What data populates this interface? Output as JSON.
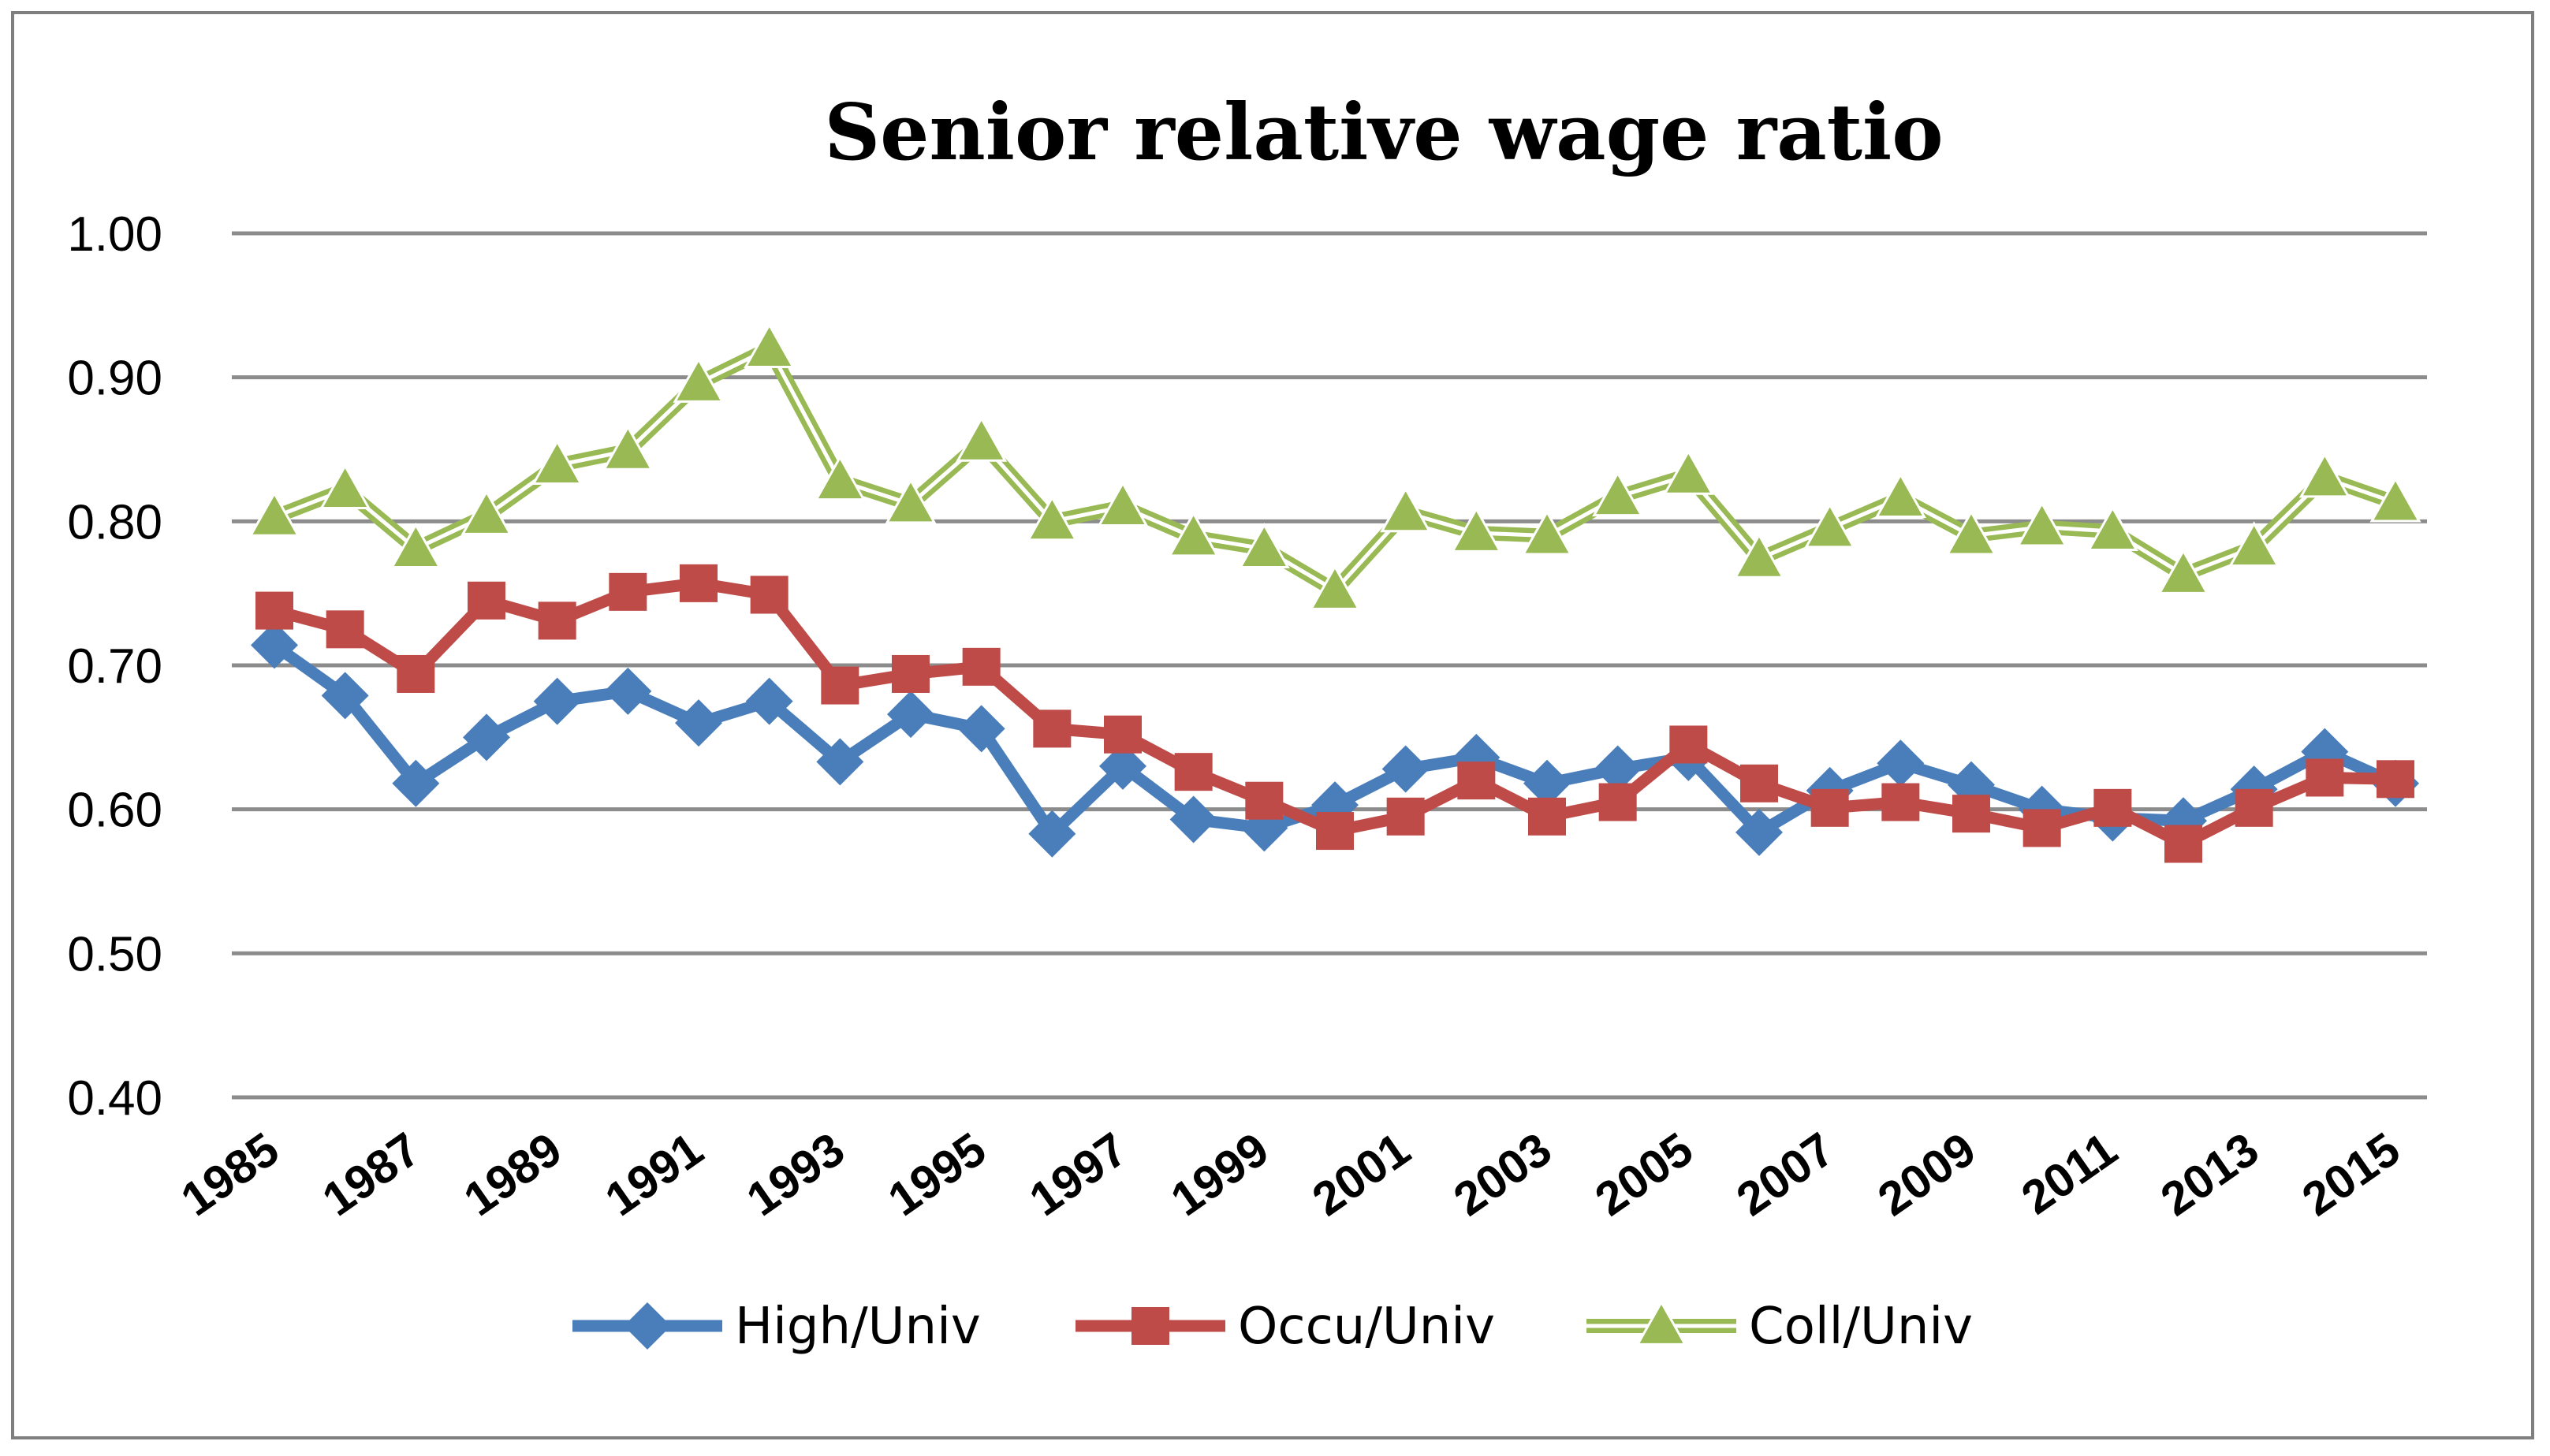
{
  "chart_data": {
    "type": "line",
    "title": "Senior relative wage ratio",
    "xlabel": "",
    "ylabel": "",
    "ylim": [
      0.4,
      1.0
    ],
    "yticks": [
      "1.00",
      "0.90",
      "0.80",
      "0.70",
      "0.60",
      "0.50",
      "0.40"
    ],
    "ytick_values": [
      1.0,
      0.9,
      0.8,
      0.7,
      0.6,
      0.5,
      0.4
    ],
    "x": [
      1985,
      1986,
      1987,
      1988,
      1989,
      1990,
      1991,
      1992,
      1993,
      1994,
      1995,
      1996,
      1997,
      1998,
      1999,
      2000,
      2001,
      2002,
      2003,
      2004,
      2005,
      2006,
      2007,
      2008,
      2009,
      2010,
      2011,
      2012,
      2013,
      2014,
      2015
    ],
    "xtick_labels": [
      "1985",
      "1987",
      "1989",
      "1991",
      "1993",
      "1995",
      "1997",
      "1999",
      "2001",
      "2003",
      "2005",
      "2007",
      "2009",
      "2011",
      "2013",
      "2015"
    ],
    "grid": true,
    "legend_position": "bottom",
    "series": [
      {
        "name": "High/Univ",
        "color": "#4a7ebb",
        "marker": "diamond",
        "values": [
          0.714,
          0.679,
          0.618,
          0.65,
          0.675,
          0.682,
          0.66,
          0.675,
          0.633,
          0.666,
          0.656,
          0.583,
          0.63,
          0.593,
          0.587,
          0.603,
          0.628,
          0.636,
          0.618,
          0.628,
          0.636,
          0.584,
          0.613,
          0.632,
          0.617,
          0.6,
          0.594,
          0.592,
          0.614,
          0.64,
          0.618
        ]
      },
      {
        "name": "Occu/Univ",
        "color": "#be4b48",
        "marker": "square",
        "values": [
          0.738,
          0.725,
          0.694,
          0.745,
          0.731,
          0.751,
          0.757,
          0.749,
          0.686,
          0.694,
          0.699,
          0.656,
          0.652,
          0.626,
          0.606,
          0.585,
          0.595,
          0.62,
          0.595,
          0.605,
          0.645,
          0.618,
          0.601,
          0.605,
          0.597,
          0.587,
          0.601,
          0.576,
          0.601,
          0.622,
          0.621
        ]
      },
      {
        "name": "Coll/Univ",
        "color": "#98b954",
        "marker": "triangle",
        "values": [
          0.803,
          0.822,
          0.781,
          0.804,
          0.839,
          0.849,
          0.896,
          0.92,
          0.828,
          0.812,
          0.855,
          0.8,
          0.81,
          0.789,
          0.781,
          0.752,
          0.806,
          0.792,
          0.79,
          0.817,
          0.832,
          0.774,
          0.795,
          0.816,
          0.79,
          0.796,
          0.793,
          0.763,
          0.782,
          0.83,
          0.813
        ]
      }
    ]
  }
}
